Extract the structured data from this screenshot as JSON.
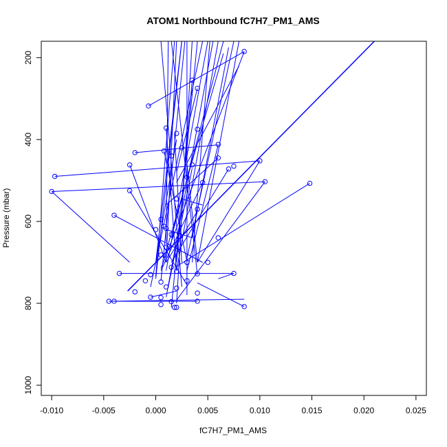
{
  "chart_data": {
    "type": "line",
    "title": "ATOM1 Northbound fC7H7_PM1_AMS",
    "xlabel": "fC7H7_PM1_AMS",
    "ylabel": "Pressure (mbar)",
    "xlim": [
      -0.011,
      0.026
    ],
    "ylim": [
      1025,
      160
    ],
    "y_reversed": true,
    "x_ticks": [
      -0.01,
      -0.005,
      0.0,
      0.005,
      0.01,
      0.015,
      0.02,
      0.025
    ],
    "x_tick_labels": [
      "-0.010",
      "-0.005",
      "0.000",
      "0.005",
      "0.010",
      "0.015",
      "0.020",
      "0.025"
    ],
    "y_ticks": [
      200,
      400,
      600,
      800,
      1000
    ],
    "y_tick_labels": [
      "200",
      "400",
      "600",
      "800",
      "1000"
    ],
    "grid": false,
    "colors": {
      "series": "#0000ff",
      "axis": "#000000"
    },
    "series": [
      {
        "marker": "open-circle",
        "points": [
          [
            0.0085,
            185
          ],
          [
            0.004,
            275
          ],
          [
            -0.0007,
            318
          ],
          [
            0.001,
            372
          ],
          [
            0.0025,
            420
          ],
          [
            0.006,
            412
          ],
          [
            0.0015,
            440
          ],
          [
            -0.002,
            432
          ],
          [
            0.0008,
            428
          ],
          [
            0.0075,
            465
          ],
          [
            0.01,
            452
          ],
          [
            0.003,
            492
          ],
          [
            0.0035,
            462
          ],
          [
            -0.0025,
            462
          ],
          [
            -0.0097,
            490
          ],
          [
            0.0045,
            505
          ],
          [
            0.0105,
            503
          ],
          [
            0.0148,
            507
          ],
          [
            -0.01,
            527
          ],
          [
            -0.0025,
            525
          ],
          [
            0.002,
            545
          ],
          [
            0.007,
            472
          ],
          [
            0.004,
            570
          ],
          [
            -0.004,
            585
          ],
          [
            0.0005,
            595
          ],
          [
            0.0008,
            612
          ],
          [
            0.001,
            617
          ],
          [
            0.0,
            620
          ],
          [
            0.0015,
            632
          ],
          [
            0.006,
            640
          ],
          [
            0.001,
            663
          ],
          [
            0.0005,
            682
          ],
          [
            0.003,
            700
          ],
          [
            0.005,
            700
          ],
          [
            0.0015,
            712
          ],
          [
            -0.0005,
            730
          ],
          [
            -0.0035,
            727
          ],
          [
            0.0075,
            727
          ],
          [
            0.004,
            728
          ],
          [
            0.002,
            722
          ],
          [
            0.0005,
            748
          ],
          [
            0.003,
            745
          ],
          [
            -0.001,
            745
          ],
          [
            0.001,
            760
          ],
          [
            0.002,
            763
          ],
          [
            -0.002,
            772
          ],
          [
            0.004,
            775
          ],
          [
            0.0005,
            786
          ],
          [
            -0.0005,
            785
          ],
          [
            0.0015,
            796
          ],
          [
            -0.0045,
            795
          ],
          [
            -0.004,
            795
          ],
          [
            0.004,
            795
          ],
          [
            0.0005,
            803
          ],
          [
            0.0085,
            808
          ],
          [
            0.002,
            810
          ],
          [
            0.0018,
            810
          ],
          [
            0.003,
            700
          ],
          [
            0.006,
            445
          ],
          [
            0.0035,
            255
          ],
          [
            0.004,
            375
          ],
          [
            0.002,
            385
          ]
        ],
        "segments": [
          [
            [
              -0.0027,
              770
            ],
            [
              0.021,
              160
            ]
          ],
          [
            [
              -0.0035,
              727
            ],
            [
              0.0075,
              727
            ]
          ],
          [
            [
              -0.0097,
              490
            ],
            [
              0.01,
              452
            ]
          ],
          [
            [
              -0.01,
              527
            ],
            [
              0.0105,
              503
            ]
          ],
          [
            [
              -0.01,
              527
            ],
            [
              -0.0025,
              700
            ]
          ],
          [
            [
              -0.0045,
              795
            ],
            [
              0.0085,
              790
            ]
          ],
          [
            [
              -0.004,
              795
            ],
            [
              0.004,
              795
            ]
          ],
          [
            [
              -0.004,
              585
            ],
            [
              0.0045,
              700
            ]
          ],
          [
            [
              -0.002,
              432
            ],
            [
              0.006,
              413
            ]
          ],
          [
            [
              -0.0025,
              462
            ],
            [
              0.001,
              700
            ]
          ],
          [
            [
              -0.0025,
              525
            ],
            [
              0.003,
              755
            ]
          ],
          [
            [
              -0.0007,
              318
            ],
            [
              0.0085,
              185
            ]
          ],
          [
            [
              0.0085,
              185
            ],
            [
              0.0005,
              715
            ]
          ],
          [
            [
              0.008,
              220
            ],
            [
              0.002,
              505
            ]
          ],
          [
            [
              0.0148,
              507
            ],
            [
              0.002,
              710
            ]
          ],
          [
            [
              0.0105,
              503
            ],
            [
              0.002,
              792
            ]
          ],
          [
            [
              0.01,
              452
            ],
            [
              0.004,
              700
            ]
          ],
          [
            [
              0.0085,
              808
            ],
            [
              0.004,
              750
            ]
          ],
          [
            [
              0.0075,
              727
            ],
            [
              0.006,
              740
            ]
          ],
          [
            [
              0.007,
              472
            ],
            [
              0.0015,
              700
            ]
          ],
          [
            [
              0.006,
              413
            ],
            [
              0.003,
              720
            ]
          ],
          [
            [
              0.0045,
              505
            ],
            [
              0.0005,
              720
            ]
          ],
          [
            [
              0.004,
              575
            ],
            [
              0.001,
              700
            ]
          ],
          [
            [
              0.002,
              160
            ],
            [
              0.001,
              700
            ]
          ],
          [
            [
              0.0035,
              160
            ],
            [
              0.002,
              800
            ]
          ],
          [
            [
              0.005,
              160
            ],
            [
              0.001,
              720
            ]
          ],
          [
            [
              0.0015,
              160
            ],
            [
              0.004,
              730
            ]
          ],
          [
            [
              0.0025,
              160
            ],
            [
              0.0,
              740
            ]
          ],
          [
            [
              0.0065,
              160
            ],
            [
              0.0015,
              640
            ]
          ],
          [
            [
              0.0075,
              160
            ],
            [
              0.003,
              690
            ]
          ],
          [
            [
              0.0005,
              160
            ],
            [
              0.0025,
              760
            ]
          ],
          [
            [
              -0.0005,
              760
            ],
            [
              0.0045,
              160
            ]
          ],
          [
            [
              0.001,
              785
            ],
            [
              0.0055,
              160
            ]
          ],
          [
            [
              0.003,
              780
            ],
            [
              0.003,
              160
            ]
          ],
          [
            [
              0.0,
              735
            ],
            [
              0.0018,
              160
            ]
          ],
          [
            [
              0.002,
              720
            ],
            [
              0.006,
              160
            ]
          ],
          [
            [
              0.004,
              700
            ],
            [
              0.008,
              160
            ]
          ],
          [
            [
              0.0015,
              810
            ],
            [
              0.004,
              160
            ]
          ],
          [
            [
              0.0,
              700
            ],
            [
              0.0025,
              160
            ]
          ],
          [
            [
              0.0008,
              690
            ],
            [
              0.0065,
              190
            ]
          ],
          [
            [
              0.0035,
              640
            ],
            [
              0.007,
              175
            ]
          ],
          [
            [
              0.001,
              650
            ],
            [
              0.0012,
              160
            ]
          ],
          [
            [
              0.0005,
              745
            ],
            [
              0.0028,
              160
            ]
          ],
          [
            [
              0.0035,
              700
            ],
            [
              0.0052,
              160
            ]
          ],
          [
            [
              0.002,
              700
            ],
            [
              0.0035,
              255
            ]
          ],
          [
            [
              0.004,
              275
            ],
            [
              0.002,
              480
            ]
          ],
          [
            [
              0.006,
              445
            ],
            [
              0.001,
              560
            ]
          ],
          [
            [
              0.0018,
              385
            ],
            [
              0.0025,
              700
            ]
          ],
          [
            [
              0.001,
              372
            ],
            [
              0.002,
              720
            ]
          ],
          [
            [
              0.003,
              460
            ],
            [
              0.004,
              700
            ]
          ],
          [
            [
              0.0008,
              428
            ],
            [
              0.003,
              698
            ]
          ],
          [
            [
              0.002,
              400
            ],
            [
              0.0,
              700
            ]
          ],
          [
            [
              0.0035,
              470
            ],
            [
              0.0012,
              760
            ]
          ],
          [
            [
              -0.0005,
              785
            ],
            [
              0.002,
              770
            ]
          ],
          [
            [
              0.001,
              620
            ],
            [
              0.0035,
              640
            ]
          ],
          [
            [
              0.0025,
              545
            ],
            [
              0.0045,
              560
            ]
          ]
        ]
      }
    ]
  }
}
